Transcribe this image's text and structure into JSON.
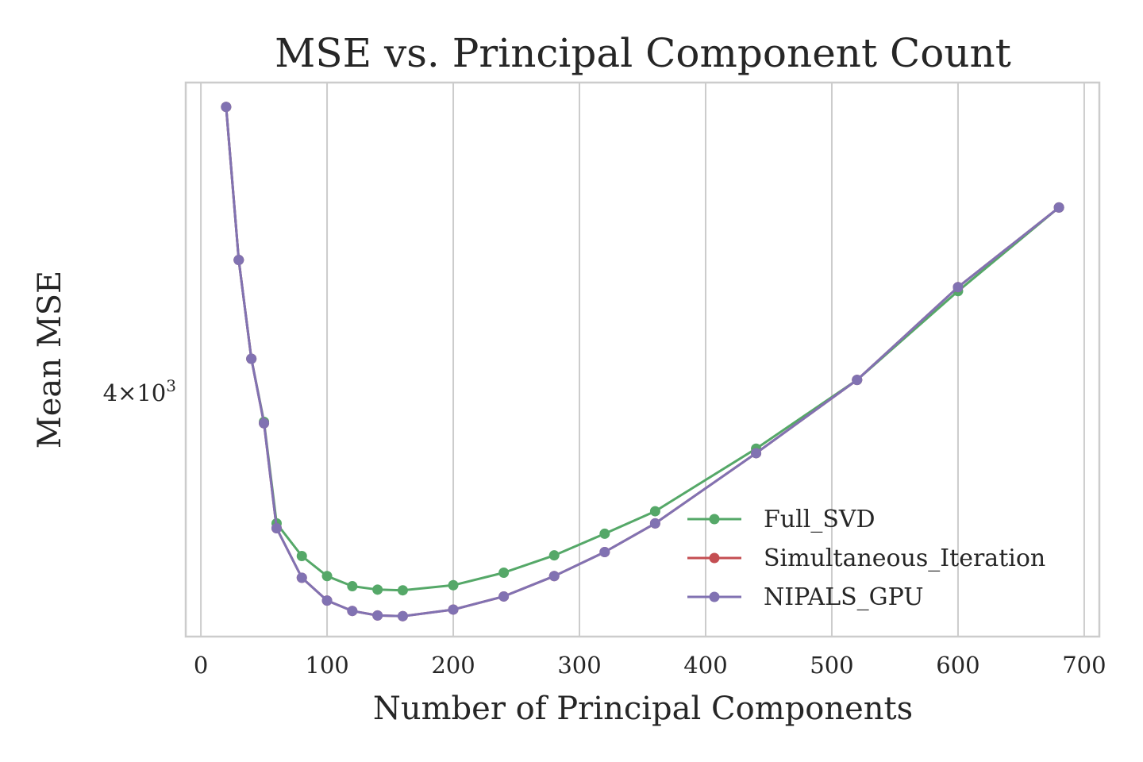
{
  "chart_data": {
    "type": "line",
    "title": "MSE vs. Principal Component Count",
    "xlabel": "Number of Principal Components",
    "ylabel": "Mean MSE",
    "xlim": [
      -12,
      712
    ],
    "ylim": [
      3235,
      5240
    ],
    "yscale": "log",
    "x_ticks": [
      0,
      100,
      200,
      300,
      400,
      500,
      600,
      700
    ],
    "x_tick_labels": [
      "0",
      "100",
      "200",
      "300",
      "400",
      "500",
      "600",
      "700"
    ],
    "y_ticks": [
      {
        "value": 4000,
        "base": "4",
        "exponent": "3"
      }
    ],
    "grid": "vertical",
    "legend": {
      "position": "lower-right"
    },
    "series": [
      {
        "name": "Full_SVD",
        "color": "#55a868",
        "points": [
          [
            20,
            5130
          ],
          [
            30,
            4490
          ],
          [
            40,
            4120
          ],
          [
            50,
            3900
          ],
          [
            60,
            3570
          ],
          [
            80,
            3470
          ],
          [
            100,
            3410
          ],
          [
            120,
            3380
          ],
          [
            140,
            3370
          ],
          [
            160,
            3368
          ],
          [
            200,
            3383
          ],
          [
            240,
            3420
          ],
          [
            280,
            3472
          ],
          [
            320,
            3538
          ],
          [
            360,
            3608
          ],
          [
            440,
            3810
          ],
          [
            520,
            4045
          ],
          [
            600,
            4370
          ],
          [
            680,
            4700
          ]
        ]
      },
      {
        "name": "Simultaneous_Iteration",
        "color": "#c44e52",
        "points": [
          [
            20,
            5130
          ],
          [
            30,
            4490
          ],
          [
            40,
            4120
          ],
          [
            50,
            3895
          ],
          [
            60,
            3555
          ],
          [
            80,
            3405
          ],
          [
            100,
            3338
          ],
          [
            120,
            3308
          ],
          [
            140,
            3295
          ],
          [
            160,
            3293
          ],
          [
            200,
            3312
          ],
          [
            240,
            3350
          ],
          [
            280,
            3410
          ],
          [
            320,
            3482
          ],
          [
            360,
            3570
          ],
          [
            440,
            3795
          ],
          [
            520,
            4045
          ],
          [
            600,
            4385
          ],
          [
            680,
            4700
          ]
        ]
      },
      {
        "name": "NIPALS_GPU",
        "color": "#8172b2",
        "points": [
          [
            20,
            5130
          ],
          [
            30,
            4490
          ],
          [
            40,
            4120
          ],
          [
            50,
            3895
          ],
          [
            60,
            3555
          ],
          [
            80,
            3405
          ],
          [
            100,
            3338
          ],
          [
            120,
            3308
          ],
          [
            140,
            3295
          ],
          [
            160,
            3293
          ],
          [
            200,
            3312
          ],
          [
            240,
            3350
          ],
          [
            280,
            3410
          ],
          [
            320,
            3482
          ],
          [
            360,
            3570
          ],
          [
            440,
            3795
          ],
          [
            520,
            4045
          ],
          [
            600,
            4385
          ],
          [
            680,
            4700
          ]
        ]
      }
    ]
  }
}
